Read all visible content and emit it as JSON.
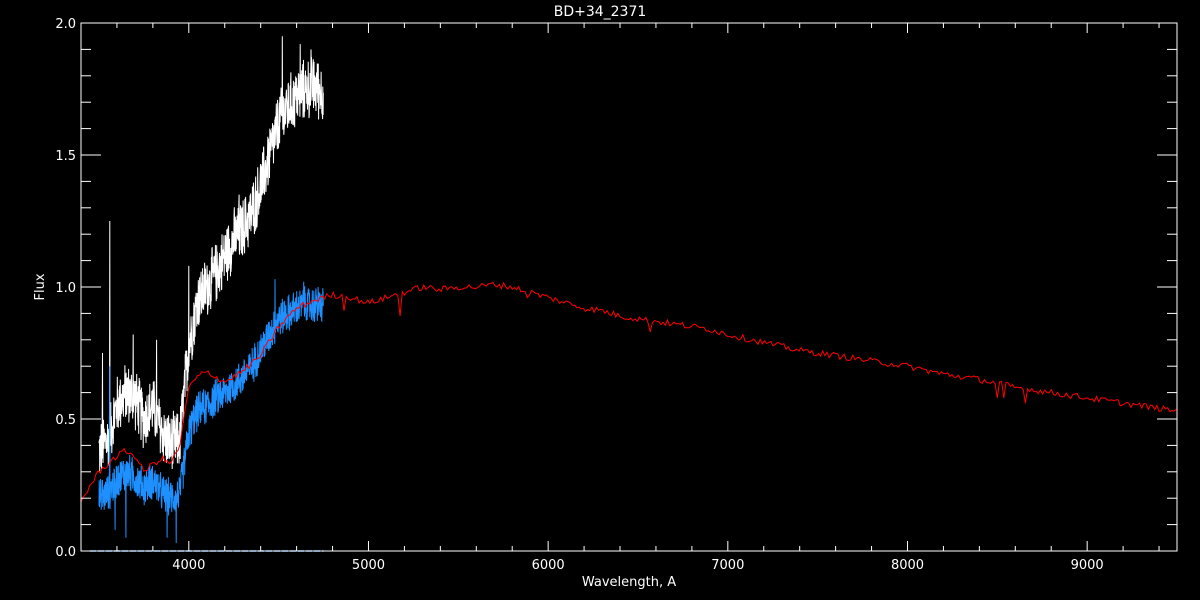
{
  "chart_data": {
    "type": "line",
    "title": "BD+34_2371",
    "xlabel": "Wavelength, A",
    "ylabel": "Flux",
    "xlim": [
      3400,
      9500
    ],
    "ylim": [
      0.0,
      2.0
    ],
    "x_ticks": [
      4000,
      5000,
      6000,
      7000,
      8000,
      9000
    ],
    "x_tick_labels": [
      "4000",
      "5000",
      "6000",
      "7000",
      "8000",
      "9000"
    ],
    "y_ticks": [
      0.0,
      0.5,
      1.0,
      1.5,
      2.0
    ],
    "y_tick_labels": [
      "0.0",
      "0.5",
      "1.0",
      "1.5",
      "2.0"
    ],
    "grid": false,
    "legend": "none",
    "colors": {
      "background": "#000000",
      "axes": "#ffffff",
      "observed": "#ffffff",
      "scaled": "#1e90ff",
      "model": "#ff0000",
      "error": "#4aa3ff"
    },
    "series": [
      {
        "color": "#ffffff",
        "x": [
          3500,
          3550,
          3600,
          3650,
          3700,
          3750,
          3800,
          3850,
          3900,
          3950,
          4000,
          4050,
          4100,
          4150,
          4200,
          4250,
          4300,
          4350,
          4400,
          4450,
          4500,
          4550,
          4600,
          4650,
          4700,
          4750
        ],
        "y": [
          0.38,
          0.42,
          0.55,
          0.6,
          0.58,
          0.5,
          0.55,
          0.45,
          0.4,
          0.42,
          0.78,
          0.95,
          1.0,
          1.05,
          1.12,
          1.18,
          1.22,
          1.28,
          1.38,
          1.5,
          1.62,
          1.68,
          1.72,
          1.75,
          1.76,
          1.74
        ],
        "spikes": [
          [
            3520,
            0.75
          ],
          [
            3560,
            1.25
          ],
          [
            3690,
            0.82
          ],
          [
            3820,
            0.8
          ],
          [
            4000,
            1.08
          ],
          [
            4280,
            1.35
          ],
          [
            4450,
            1.6
          ],
          [
            4520,
            1.95
          ],
          [
            4620,
            1.92
          ],
          [
            4680,
            1.9
          ]
        ]
      },
      {
        "color": "#1e90ff",
        "x": [
          3500,
          3550,
          3600,
          3650,
          3700,
          3750,
          3800,
          3850,
          3900,
          3950,
          4000,
          4050,
          4100,
          4150,
          4200,
          4250,
          4300,
          4350,
          4400,
          4450,
          4500,
          4550,
          4600,
          4650,
          4700,
          4750
        ],
        "y": [
          0.2,
          0.22,
          0.27,
          0.3,
          0.28,
          0.24,
          0.27,
          0.22,
          0.2,
          0.22,
          0.45,
          0.53,
          0.55,
          0.58,
          0.6,
          0.63,
          0.66,
          0.7,
          0.76,
          0.82,
          0.88,
          0.9,
          0.92,
          0.93,
          0.93,
          0.93
        ],
        "spikes": [
          [
            3560,
            0.7
          ],
          [
            3590,
            0.08
          ],
          [
            3650,
            0.05
          ],
          [
            3880,
            0.05
          ],
          [
            3930,
            0.03
          ],
          [
            4480,
            1.03
          ],
          [
            4640,
            1.02
          ],
          [
            4720,
            1.0
          ]
        ]
      },
      {
        "color": "#ff0000",
        "x": [
          3400,
          3500,
          3550,
          3600,
          3650,
          3700,
          3750,
          3800,
          3850,
          3900,
          3950,
          4000,
          4050,
          4100,
          4200,
          4300,
          4400,
          4500,
          4600,
          4700,
          4800,
          4900,
          5000,
          5100,
          5200,
          5300,
          5400,
          5500,
          5600,
          5700,
          5800,
          5900,
          6000,
          6100,
          6200,
          6300,
          6400,
          6500,
          6600,
          6700,
          6800,
          6900,
          7000,
          7200,
          7400,
          7600,
          7800,
          8000,
          8200,
          8400,
          8600,
          8800,
          9000,
          9200,
          9400,
          9500
        ],
        "y": [
          0.19,
          0.3,
          0.33,
          0.36,
          0.38,
          0.36,
          0.3,
          0.33,
          0.35,
          0.33,
          0.4,
          0.62,
          0.66,
          0.68,
          0.64,
          0.68,
          0.74,
          0.85,
          0.92,
          0.95,
          0.97,
          0.96,
          0.94,
          0.96,
          0.98,
          1.0,
          0.99,
          1.0,
          1.0,
          1.01,
          1.0,
          0.98,
          0.96,
          0.94,
          0.92,
          0.91,
          0.89,
          0.88,
          0.87,
          0.86,
          0.85,
          0.84,
          0.82,
          0.79,
          0.76,
          0.74,
          0.72,
          0.7,
          0.67,
          0.65,
          0.62,
          0.6,
          0.58,
          0.56,
          0.54,
          0.53
        ],
        "spikes": [
          [
            4860,
            0.91
          ],
          [
            5175,
            0.89
          ],
          [
            5890,
            0.96
          ],
          [
            6563,
            0.83
          ],
          [
            8500,
            0.58
          ],
          [
            8540,
            0.58
          ],
          [
            8660,
            0.56
          ]
        ]
      },
      {
        "color": "#4aa3ff",
        "x": [
          3450,
          4750
        ],
        "y": [
          0.0,
          0.0
        ]
      }
    ]
  }
}
